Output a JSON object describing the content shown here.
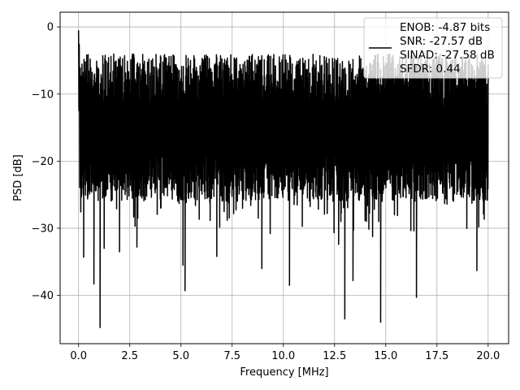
{
  "chart_data": {
    "type": "line",
    "title": "",
    "xlabel": "Frequency [MHz]",
    "ylabel": "PSD [dB]",
    "xlim": [
      -0.9,
      21.0
    ],
    "ylim": [
      -47.2,
      2.2
    ],
    "xticks": [
      0.0,
      2.5,
      5.0,
      7.5,
      10.0,
      12.5,
      15.0,
      17.5,
      20.0
    ],
    "xtick_labels": [
      "0.0",
      "2.5",
      "5.0",
      "7.5",
      "10.0",
      "12.5",
      "15.0",
      "17.5",
      "20.0"
    ],
    "yticks": [
      0,
      -10,
      -20,
      -30,
      -40
    ],
    "ytick_labels": [
      "0",
      "−10",
      "−20",
      "−30",
      "−40"
    ],
    "grid": true,
    "legend_position": "top-right",
    "legend_lines": [
      "ENOB: -4.87 bits",
      "SNR: -27.57 dB",
      "SINAD: -27.58 dB",
      "SFDR: 0.44"
    ],
    "line_color": "#000000",
    "series": [
      {
        "x_start": 0.0,
        "x_end": 20.0,
        "noise_floor_band_db": [
          -22,
          -3
        ],
        "low_freq_peak_db": -0.5,
        "deep_dips": [
          {
            "x": 0.25,
            "y": -34.3
          },
          {
            "x": 0.75,
            "y": -38.3
          },
          {
            "x": 1.05,
            "y": -44.8
          },
          {
            "x": 1.25,
            "y": -33.0
          },
          {
            "x": 2.0,
            "y": -33.5
          },
          {
            "x": 2.85,
            "y": -32.8
          },
          {
            "x": 5.1,
            "y": -35.5
          },
          {
            "x": 5.2,
            "y": -39.3
          },
          {
            "x": 6.75,
            "y": -34.2
          },
          {
            "x": 8.95,
            "y": -36.0
          },
          {
            "x": 10.3,
            "y": -38.5
          },
          {
            "x": 12.7,
            "y": -32.4
          },
          {
            "x": 13.0,
            "y": -43.5
          },
          {
            "x": 13.4,
            "y": -37.8
          },
          {
            "x": 14.75,
            "y": -44.0
          },
          {
            "x": 16.5,
            "y": -40.3
          },
          {
            "x": 19.45,
            "y": -36.3
          }
        ]
      }
    ]
  }
}
